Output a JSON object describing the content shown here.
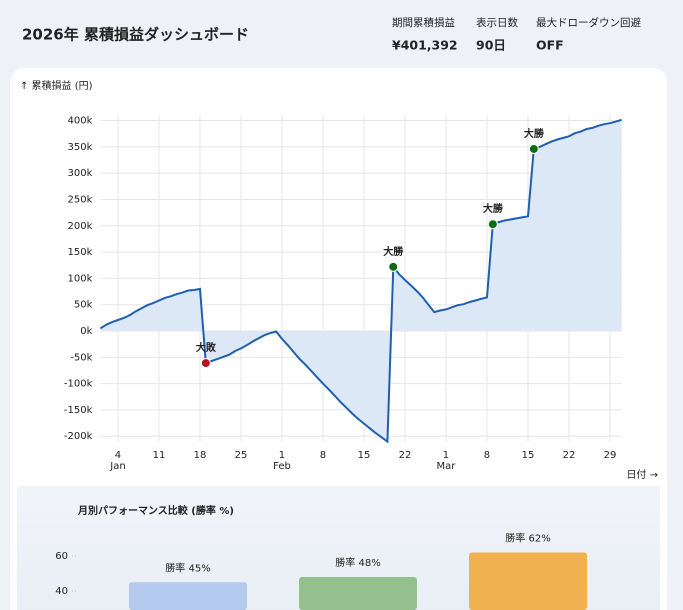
{
  "header": {
    "title": "2026年 累積損益ダッシュボード",
    "stats": [
      {
        "label": "期間累積損益",
        "value": "¥401,392"
      },
      {
        "label": "表示日数",
        "value": "90日"
      },
      {
        "label": "最大ドローダウン回避",
        "value": "OFF"
      }
    ]
  },
  "chart_data": [
    {
      "type": "line",
      "y_label": "↑ 累積損益 (円)",
      "x_label": "日付 →",
      "color": "#1f5fb0",
      "fill": "#dde8f6",
      "grid": true,
      "x": [
        1,
        2,
        3,
        4,
        5,
        6,
        7,
        8,
        9,
        10,
        11,
        12,
        13,
        14,
        15,
        16,
        17,
        18,
        19,
        20,
        21,
        22,
        23,
        24,
        25,
        26,
        27,
        28,
        29,
        30,
        31,
        32,
        33,
        34,
        35,
        36,
        37,
        38,
        39,
        40,
        41,
        42,
        43,
        44,
        45,
        46,
        47,
        48,
        49,
        50,
        51,
        52,
        53,
        54,
        55,
        56,
        57,
        58,
        59,
        60,
        61,
        62,
        63,
        64,
        65,
        66,
        67,
        68,
        69,
        70,
        71,
        72,
        73,
        74,
        75,
        76,
        77,
        78,
        79,
        80,
        81,
        82,
        83,
        84,
        85,
        86,
        87,
        88,
        89,
        90
      ],
      "values": [
        5000,
        12000,
        17000,
        21000,
        25000,
        30000,
        37000,
        43000,
        49000,
        53000,
        58000,
        63000,
        66000,
        70000,
        73000,
        77000,
        78000,
        80000,
        -61000,
        -57000,
        -53000,
        -49000,
        -45000,
        -38000,
        -33000,
        -27000,
        -20000,
        -14000,
        -8000,
        -4000,
        -1000,
        -15000,
        -27000,
        -40000,
        -53000,
        -64000,
        -76000,
        -88000,
        -100000,
        -111000,
        -123000,
        -135000,
        -146000,
        -157000,
        -167000,
        -176000,
        -185000,
        -194000,
        -202000,
        -210000,
        122000,
        108000,
        97000,
        87000,
        76000,
        64000,
        50000,
        36000,
        39000,
        41000,
        45000,
        49000,
        51000,
        55000,
        58000,
        61000,
        64000,
        203000,
        207000,
        210000,
        212000,
        214000,
        216000,
        218000,
        346000,
        350000,
        355000,
        360000,
        364000,
        367000,
        370000,
        376000,
        379000,
        384000,
        386000,
        390000,
        393000,
        395000,
        398000,
        401392
      ],
      "xlim": [
        1,
        90
      ],
      "ylim": [
        -210000,
        410000
      ],
      "xticks": [
        4,
        11,
        18,
        25,
        {
          "value": 32,
          "label": "1"
        },
        {
          "value": 39,
          "label": "8"
        },
        {
          "value": 46,
          "label": "15"
        },
        {
          "value": 53,
          "label": "22"
        },
        {
          "value": 60,
          "label": "1"
        },
        {
          "value": 67,
          "label": "8"
        },
        {
          "value": 74,
          "label": "15"
        },
        {
          "value": 81,
          "label": "22"
        },
        {
          "value": 88,
          "label": "29"
        }
      ],
      "x_months": [
        {
          "value": 4,
          "label": "Jan"
        },
        {
          "value": 32,
          "label": "Feb"
        },
        {
          "value": 60,
          "label": "Mar"
        }
      ],
      "yticks": [
        {
          "value": -200000,
          "label": "-200k"
        },
        {
          "value": -150000,
          "label": "-150k"
        },
        {
          "value": -100000,
          "label": "-100k"
        },
        {
          "value": -50000,
          "label": "-50k"
        },
        {
          "value": 0,
          "label": "0k"
        },
        {
          "value": 50000,
          "label": "50k"
        },
        {
          "value": 100000,
          "label": "100k"
        },
        {
          "value": 150000,
          "label": "150k"
        },
        {
          "value": 200000,
          "label": "200k"
        },
        {
          "value": 250000,
          "label": "250k"
        },
        {
          "value": 300000,
          "label": "300k"
        },
        {
          "value": 350000,
          "label": "350k"
        },
        {
          "value": 400000,
          "label": "400k"
        }
      ],
      "annotations": [
        {
          "x": 19,
          "label": "大敗",
          "color": "#b3141d"
        },
        {
          "x": 51,
          "label": "大勝",
          "color": "#0d6b12"
        },
        {
          "x": 68,
          "label": "大勝",
          "color": "#0d6b12"
        },
        {
          "x": 75,
          "label": "大勝",
          "color": "#0d6b12"
        }
      ]
    },
    {
      "type": "bar",
      "title": "月別パフォーマンス比較 (勝率 %)",
      "values": [
        45,
        48,
        62
      ],
      "value_labels": [
        "勝率 45%",
        "勝率 48%",
        "勝率 62%"
      ],
      "colors": [
        "#b3c9ee",
        "#93c08d",
        "#f0b24e"
      ],
      "ylim": [
        0,
        70
      ],
      "yticks": [
        40,
        60
      ]
    }
  ]
}
